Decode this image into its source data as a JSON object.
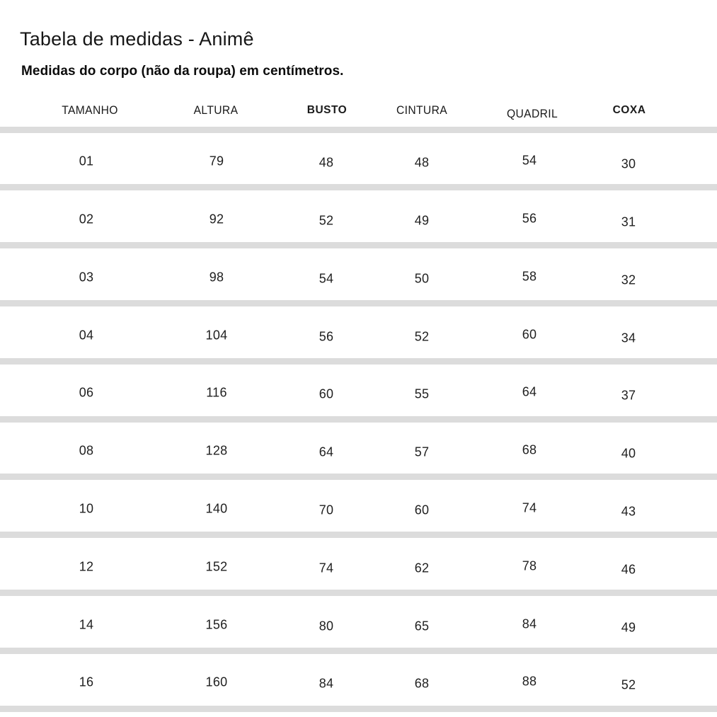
{
  "title": "Tabela de medidas - Animê",
  "subtitle": "Medidas do corpo (não da roupa) em centímetros.",
  "colors": {
    "background": "#ffffff",
    "divider": "#dcdcdc",
    "text": "#1f1f1f"
  },
  "table": {
    "columns": [
      "TAMANHO",
      "ALTURA",
      "BUSTO",
      "CINTURA",
      "QUADRIL",
      "COXA"
    ],
    "unit": "cm",
    "rows": [
      [
        "01",
        "79",
        "48",
        "48",
        "54",
        "30"
      ],
      [
        "02",
        "92",
        "52",
        "49",
        "56",
        "31"
      ],
      [
        "03",
        "98",
        "54",
        "50",
        "58",
        "32"
      ],
      [
        "04",
        "104",
        "56",
        "52",
        "60",
        "34"
      ],
      [
        "06",
        "116",
        "60",
        "55",
        "64",
        "37"
      ],
      [
        "08",
        "128",
        "64",
        "57",
        "68",
        "40"
      ],
      [
        "10",
        "140",
        "70",
        "60",
        "74",
        "43"
      ],
      [
        "12",
        "152",
        "74",
        "62",
        "78",
        "46"
      ],
      [
        "14",
        "156",
        "80",
        "65",
        "84",
        "49"
      ],
      [
        "16",
        "160",
        "84",
        "68",
        "88",
        "52"
      ]
    ]
  }
}
